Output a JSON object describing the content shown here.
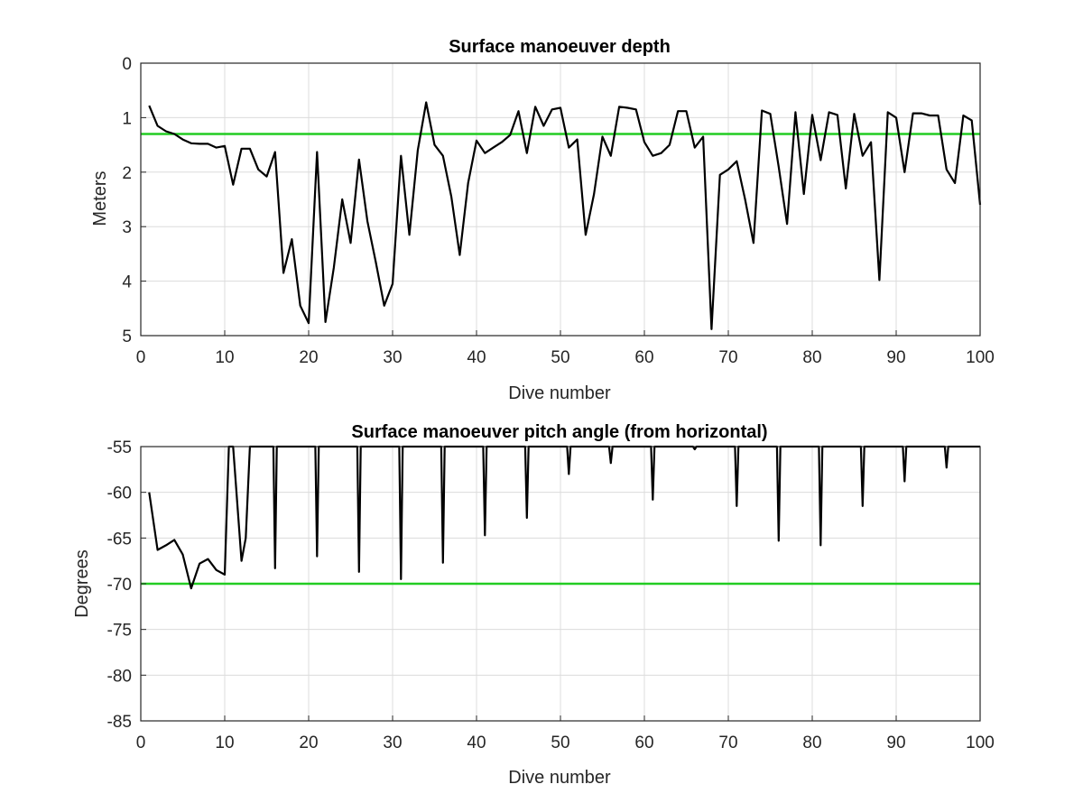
{
  "chart_data": [
    {
      "type": "line",
      "title": "Surface manoeuver depth",
      "xlabel": "Dive number",
      "ylabel": "Meters",
      "xlim": [
        0,
        100
      ],
      "ylim": [
        0,
        5
      ],
      "y_reversed": true,
      "grid": true,
      "xticks": [
        "0",
        "10",
        "20",
        "30",
        "40",
        "50",
        "60",
        "70",
        "80",
        "90",
        "100"
      ],
      "yticks": [
        "0",
        "1",
        "2",
        "3",
        "4",
        "5"
      ],
      "colors": {
        "series": "#000000",
        "reference": "#22cc22"
      },
      "series": [
        {
          "x": [
            1,
            2,
            3,
            4,
            5,
            6,
            7,
            8,
            9,
            10,
            11,
            12,
            13,
            14,
            15,
            16,
            17,
            18,
            19,
            20,
            21,
            22,
            23,
            24,
            25,
            26,
            27,
            28,
            29,
            30,
            31,
            32,
            33,
            34,
            35,
            36,
            37,
            38,
            39,
            40,
            41,
            42,
            43,
            44,
            45,
            46,
            47,
            48,
            49,
            50,
            51,
            52,
            53,
            54,
            55,
            56,
            57,
            58,
            59,
            60,
            61,
            62,
            63,
            64,
            65,
            66,
            67,
            68,
            69,
            70,
            71,
            72,
            73,
            74,
            75,
            76,
            77,
            78,
            79,
            80,
            81,
            82,
            83,
            84,
            85,
            86,
            87,
            88,
            89,
            90,
            91,
            92,
            93,
            94,
            95,
            96,
            97,
            98,
            99,
            100
          ],
          "values": [
            0.78,
            1.15,
            1.25,
            1.3,
            1.4,
            1.47,
            1.48,
            1.48,
            1.55,
            1.52,
            2.23,
            1.57,
            1.57,
            1.95,
            2.08,
            1.63,
            3.85,
            3.23,
            4.45,
            4.77,
            1.63,
            4.75,
            3.75,
            2.5,
            3.3,
            1.77,
            2.9,
            3.65,
            4.45,
            4.05,
            1.7,
            3.15,
            1.6,
            0.72,
            1.5,
            1.7,
            2.45,
            3.52,
            2.2,
            1.42,
            1.65,
            1.55,
            1.45,
            1.32,
            0.88,
            1.65,
            0.8,
            1.15,
            0.85,
            0.82,
            1.55,
            1.4,
            3.15,
            2.4,
            1.35,
            1.7,
            0.8,
            0.82,
            0.85,
            1.45,
            1.7,
            1.65,
            1.5,
            0.88,
            0.88,
            1.55,
            1.35,
            4.88,
            2.05,
            1.95,
            1.8,
            2.5,
            3.3,
            0.87,
            0.93,
            1.9,
            2.95,
            0.9,
            2.4,
            0.95,
            1.78,
            0.9,
            0.95,
            2.3,
            0.93,
            1.7,
            1.45,
            3.98,
            0.9,
            1.0,
            2.0,
            0.92,
            0.92,
            0.96,
            0.96,
            1.95,
            2.2,
            0.96,
            1.05,
            2.6
          ]
        }
      ],
      "reference_line": {
        "y": 1.3
      }
    },
    {
      "type": "line",
      "title": "Surface manoeuver pitch angle (from horizontal)",
      "xlabel": "Dive number",
      "ylabel": "Degrees",
      "xlim": [
        0,
        100
      ],
      "ylim": [
        -85,
        -55
      ],
      "grid": true,
      "xticks": [
        "0",
        "10",
        "20",
        "30",
        "40",
        "50",
        "60",
        "70",
        "80",
        "90",
        "100"
      ],
      "yticks": [
        "-55",
        "-60",
        "-65",
        "-70",
        "-75",
        "-80",
        "-85"
      ],
      "colors": {
        "series": "#000000",
        "reference": "#22cc22"
      },
      "series": [
        {
          "x": [
            1,
            2,
            3,
            4,
            5,
            6,
            7,
            8,
            9,
            10,
            10.5,
            11,
            12,
            12.5,
            13,
            14,
            15,
            15.8,
            16,
            16.2,
            17,
            20,
            20.8,
            21,
            21.2,
            22,
            25,
            25.8,
            26,
            26.2,
            27,
            30,
            30.8,
            31,
            31.2,
            32,
            35,
            35.8,
            36,
            36.2,
            37,
            40,
            40.8,
            41,
            41.2,
            42,
            45,
            45.8,
            46,
            46.2,
            47,
            50,
            50.8,
            51,
            51.2,
            52,
            55,
            55.8,
            56,
            56.2,
            57,
            60,
            60.8,
            61,
            61.2,
            62,
            65,
            65.8,
            66,
            66.2,
            67,
            70,
            70.8,
            71,
            71.2,
            72,
            75,
            75.8,
            76,
            76.2,
            77,
            80,
            80.8,
            81,
            81.2,
            82,
            85,
            85.8,
            86,
            86.2,
            87,
            90,
            90.8,
            91,
            91.2,
            92,
            95,
            95.8,
            96,
            96.2,
            97,
            100
          ],
          "values": [
            -60,
            -66.3,
            -65.8,
            -65.2,
            -66.8,
            -70.5,
            -67.8,
            -67.3,
            -68.5,
            -69,
            -55,
            -55,
            -67.5,
            -65,
            -55,
            -55,
            -55,
            -55,
            -68.3,
            -55,
            -55,
            -55,
            -55,
            -67,
            -55,
            -55,
            -55,
            -55,
            -68.7,
            -55,
            -55,
            -55,
            -55,
            -69.5,
            -55,
            -55,
            -55,
            -55,
            -67.7,
            -55,
            -55,
            -55,
            -55,
            -64.7,
            -55,
            -55,
            -55,
            -55,
            -62.8,
            -55,
            -55,
            -55,
            -55,
            -58,
            -55,
            -55,
            -55,
            -55,
            -56.8,
            -55,
            -55,
            -55,
            -55,
            -60.8,
            -55,
            -55,
            -55,
            -55,
            -55.3,
            -55,
            -55,
            -55,
            -55,
            -61.5,
            -55,
            -55,
            -55,
            -55,
            -65.3,
            -55,
            -55,
            -55,
            -55,
            -65.8,
            -55,
            -55,
            -55,
            -55,
            -61.5,
            -55,
            -55,
            -55,
            -55,
            -58.8,
            -55,
            -55,
            -55,
            -55,
            -57.3,
            -55,
            -55,
            -55
          ]
        }
      ],
      "reference_line": {
        "y": -70
      }
    }
  ]
}
